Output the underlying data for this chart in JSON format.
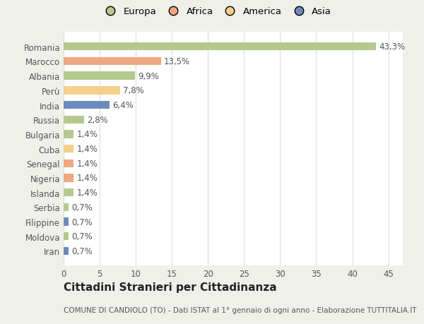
{
  "countries": [
    "Romania",
    "Marocco",
    "Albania",
    "Perù",
    "India",
    "Russia",
    "Bulgaria",
    "Cuba",
    "Senegal",
    "Nigeria",
    "Islanda",
    "Serbia",
    "Filippine",
    "Moldova",
    "Iran"
  ],
  "values": [
    43.3,
    13.5,
    9.9,
    7.8,
    6.4,
    2.8,
    1.4,
    1.4,
    1.4,
    1.4,
    1.4,
    0.7,
    0.7,
    0.7,
    0.7
  ],
  "labels": [
    "43,3%",
    "13,5%",
    "9,9%",
    "7,8%",
    "6,4%",
    "2,8%",
    "1,4%",
    "1,4%",
    "1,4%",
    "1,4%",
    "1,4%",
    "0,7%",
    "0,7%",
    "0,7%",
    "0,7%"
  ],
  "colors": [
    "#b5c98e",
    "#f0a882",
    "#b5c98e",
    "#f5d08a",
    "#6b8cba",
    "#b5c98e",
    "#b5c98e",
    "#f5d08a",
    "#f0a882",
    "#f0a882",
    "#b5c98e",
    "#b5c98e",
    "#6b8cba",
    "#b5c98e",
    "#6b8cba"
  ],
  "legend_labels": [
    "Europa",
    "Africa",
    "America",
    "Asia"
  ],
  "legend_colors": [
    "#b5c98e",
    "#f0a882",
    "#f5d08a",
    "#6b8cba"
  ],
  "title": "Cittadini Stranieri per Cittadinanza",
  "subtitle": "COMUNE DI CANDIOLO (TO) - Dati ISTAT al 1° gennaio di ogni anno - Elaborazione TUTTITALIA.IT",
  "xlim": [
    0,
    47
  ],
  "xticks": [
    0,
    5,
    10,
    15,
    20,
    25,
    30,
    35,
    40,
    45
  ],
  "background_color": "#f0f0eb",
  "plot_background": "#ffffff",
  "grid_color": "#dddddd",
  "text_color": "#555555",
  "title_color": "#222222",
  "label_fontsize": 8.5,
  "tick_fontsize": 8.5,
  "title_fontsize": 11,
  "subtitle_fontsize": 7.5,
  "bar_height": 0.55
}
